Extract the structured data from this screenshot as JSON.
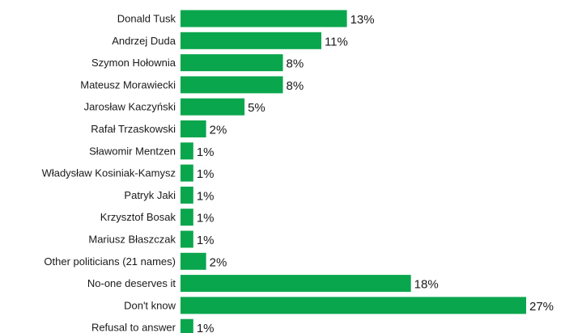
{
  "chart_data": {
    "type": "bar",
    "orientation": "horizontal",
    "title": "",
    "xlabel": "",
    "ylabel": "",
    "bar_color": "#0aa64d",
    "value_suffix": "%",
    "grid": false,
    "legend": "none",
    "xlim": [
      0,
      27
    ],
    "categories": [
      "Donald Tusk",
      "Andrzej Duda",
      "Szymon Hołownia",
      "Mateusz Morawiecki",
      "Jarosław Kaczyński",
      "Rafał Trzaskowski",
      "Sławomir Mentzen",
      "Władysław Kosiniak-Kamysz",
      "Patryk Jaki",
      "Krzysztof Bosak",
      "Mariusz Błaszczak",
      "Other politicians (21 names)",
      "No-one deserves it",
      "Don't know",
      "Refusal to answer"
    ],
    "values": [
      13,
      11,
      8,
      8,
      5,
      2,
      1,
      1,
      1,
      1,
      1,
      2,
      18,
      27,
      1
    ],
    "value_labels": [
      "13%",
      "11%",
      "8%",
      "8%",
      "5%",
      "2%",
      "1%",
      "1%",
      "1%",
      "1%",
      "1%",
      "2%",
      "18%",
      "27%",
      "1%"
    ]
  }
}
